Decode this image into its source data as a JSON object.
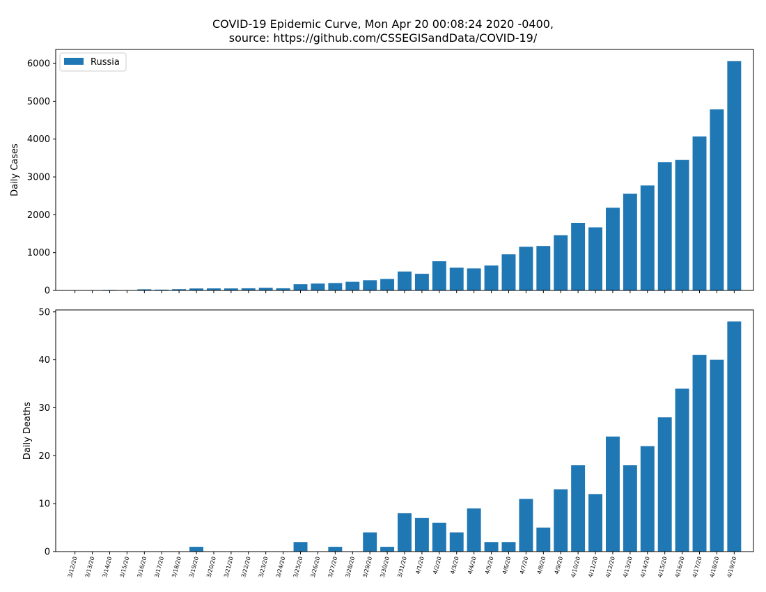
{
  "figure": {
    "title_line1": "COVID-19 Epidemic Curve, Mon Apr 20 00:08:24 2020 -0400,",
    "title_line2": "source: https://github.com/CSSEGISandData/COVID-19/",
    "legend_label": "Russia"
  },
  "colors": {
    "bar": "#1f77b4",
    "frame": "#000000",
    "background": "#ffffff"
  },
  "chart_data": [
    {
      "type": "bar",
      "categories": [
        "3/12/20",
        "3/13/20",
        "3/14/20",
        "3/15/20",
        "3/16/20",
        "3/17/20",
        "3/18/20",
        "3/19/20",
        "3/20/20",
        "3/21/20",
        "3/22/20",
        "3/23/20",
        "3/24/20",
        "3/25/20",
        "3/26/20",
        "3/27/20",
        "3/28/20",
        "3/29/20",
        "3/30/20",
        "3/31/20",
        "4/1/20",
        "4/2/20",
        "4/3/20",
        "4/4/20",
        "4/5/20",
        "4/6/20",
        "4/7/20",
        "4/8/20",
        "4/9/20",
        "4/10/20",
        "4/11/20",
        "4/12/20",
        "4/13/20",
        "4/14/20",
        "4/15/20",
        "4/16/20",
        "4/17/20",
        "4/18/20",
        "4/19/20"
      ],
      "series": [
        {
          "name": "Russia",
          "values": [
            0,
            6,
            14,
            0,
            30,
            21,
            33,
            52,
            54,
            53,
            57,
            71,
            57,
            163,
            182,
            196,
            228,
            270,
            302,
            500,
            440,
            771,
            601,
            582,
            658,
            954,
            1154,
            1175,
            1459,
            1786,
            1667,
            2186,
            2558,
            2774,
            3388,
            3448,
            4070,
            4785,
            6060
          ]
        }
      ],
      "title": "",
      "xlabel": "",
      "ylabel": "Daily Cases",
      "ylim": [
        0,
        6370
      ],
      "yticks": [
        0,
        1000,
        2000,
        3000,
        4000,
        5000,
        6000
      ],
      "legend": "top-left",
      "grid": false
    },
    {
      "type": "bar",
      "categories": [
        "3/12/20",
        "3/13/20",
        "3/14/20",
        "3/15/20",
        "3/16/20",
        "3/17/20",
        "3/18/20",
        "3/19/20",
        "3/20/20",
        "3/21/20",
        "3/22/20",
        "3/23/20",
        "3/24/20",
        "3/25/20",
        "3/26/20",
        "3/27/20",
        "3/28/20",
        "3/29/20",
        "3/30/20",
        "3/31/20",
        "4/1/20",
        "4/2/20",
        "4/3/20",
        "4/4/20",
        "4/5/20",
        "4/6/20",
        "4/7/20",
        "4/8/20",
        "4/9/20",
        "4/10/20",
        "4/11/20",
        "4/12/20",
        "4/13/20",
        "4/14/20",
        "4/15/20",
        "4/16/20",
        "4/17/20",
        "4/18/20",
        "4/19/20"
      ],
      "series": [
        {
          "name": "Russia",
          "values": [
            0,
            0,
            0,
            0,
            0,
            0,
            0,
            1,
            0,
            0,
            0,
            0,
            0,
            2,
            0,
            1,
            0,
            4,
            1,
            8,
            7,
            6,
            4,
            9,
            2,
            2,
            11,
            5,
            13,
            18,
            12,
            24,
            18,
            22,
            28,
            34,
            41,
            40,
            48
          ]
        }
      ],
      "title": "",
      "xlabel": "",
      "ylabel": "Daily Deaths",
      "ylim": [
        0,
        50.4
      ],
      "yticks": [
        0,
        10,
        20,
        30,
        40,
        50
      ],
      "grid": false
    }
  ]
}
